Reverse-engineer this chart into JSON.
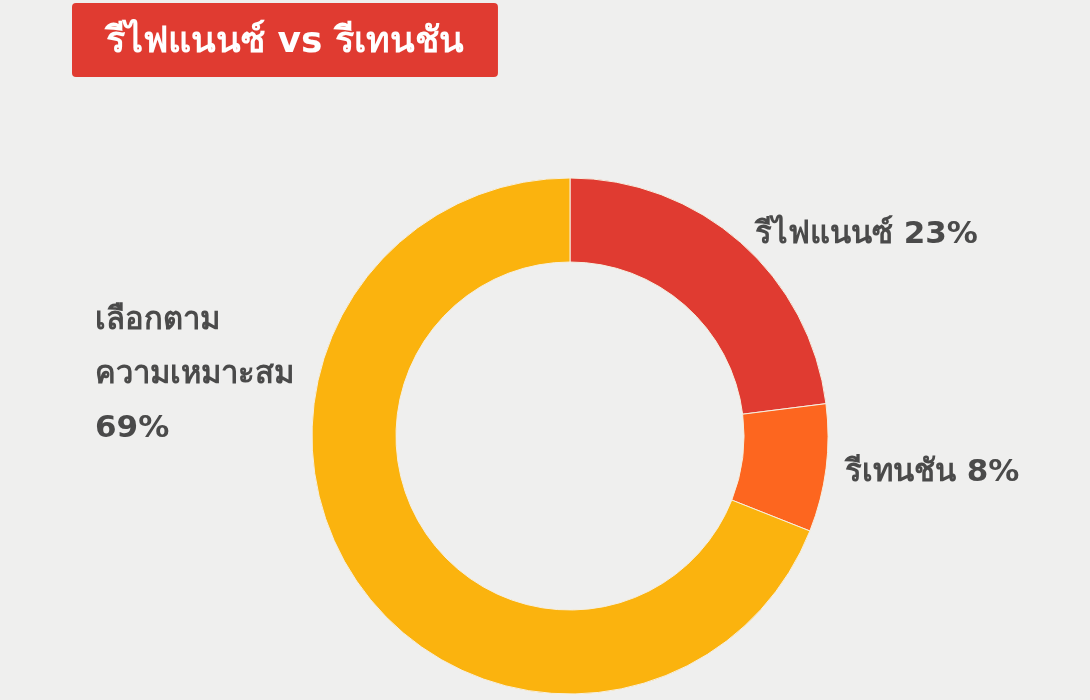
{
  "chart_data": {
    "type": "donut",
    "title": "รีไฟแนนซ์ vs รีเทนชัน",
    "categories": [
      "รีไฟแนนซ์",
      "รีเทนชัน",
      "เลือกตาม\nความเหมาะสม"
    ],
    "values": [
      23,
      8,
      69
    ],
    "value_labels": [
      "23%",
      "8%",
      "69%"
    ],
    "colors": [
      "#e03b31",
      "#fd661f",
      "#fbb30e"
    ],
    "legend": false
  }
}
